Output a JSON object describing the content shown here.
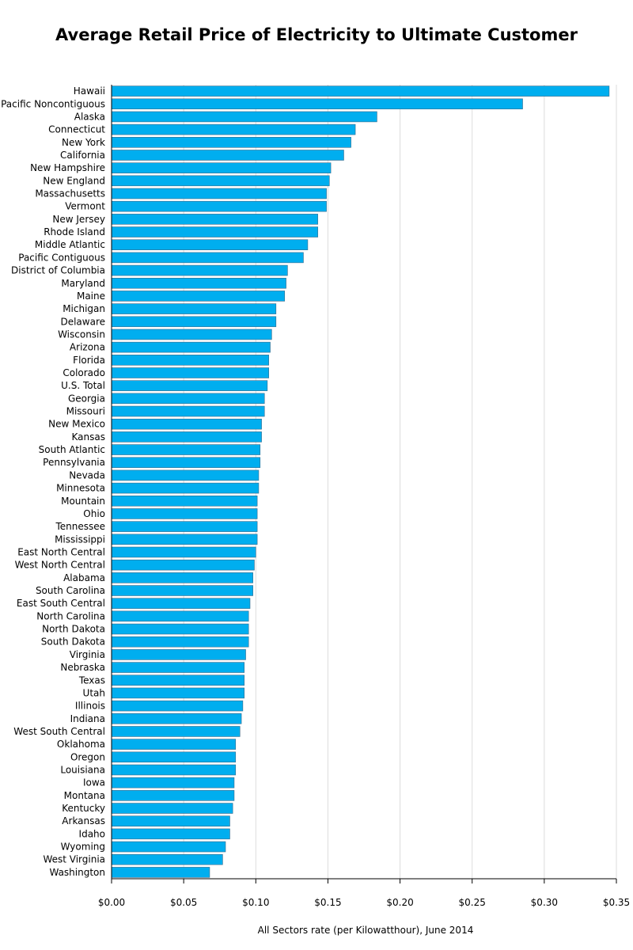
{
  "chart_data": {
    "type": "bar",
    "orientation": "horizontal",
    "title": "Average Retail Price of Electricity to Ultimate Customer",
    "xlabel": "All Sectors rate (per Kilowatthour), June 2014",
    "ylabel": "",
    "xlim": [
      0,
      0.35
    ],
    "xticks": [
      0.0,
      0.05,
      0.1,
      0.15,
      0.2,
      0.25,
      0.3,
      0.35
    ],
    "xtick_labels": [
      "$0.00",
      "$0.05",
      "$0.10",
      "$0.15",
      "$0.20",
      "$0.25",
      "$0.30",
      "$0.35"
    ],
    "grid": "vertical",
    "bar_color": "#00aeef",
    "bar_edge_color": "#3a6a8a",
    "categories": [
      "Hawaii",
      "Pacific Noncontiguous",
      "Alaska",
      "Connecticut",
      "New York",
      "California",
      "New Hampshire",
      "New England",
      "Massachusetts",
      "Vermont",
      "New Jersey",
      "Rhode Island",
      "Middle Atlantic",
      "Pacific Contiguous",
      "District of Columbia",
      "Maryland",
      "Maine",
      "Michigan",
      "Delaware",
      "Wisconsin",
      "Arizona",
      "Florida",
      "Colorado",
      "U.S. Total",
      "Georgia",
      "Missouri",
      "New Mexico",
      "Kansas",
      "South Atlantic",
      "Pennsylvania",
      "Nevada",
      "Minnesota",
      "Mountain",
      "Ohio",
      "Tennessee",
      "Mississippi",
      "East North Central",
      "West North Central",
      "Alabama",
      "South Carolina",
      "East South Central",
      "North Carolina",
      "North Dakota",
      "South Dakota",
      "Virginia",
      "Nebraska",
      "Texas",
      "Utah",
      "Illinois",
      "Indiana",
      "West South Central",
      "Oklahoma",
      "Oregon",
      "Louisiana",
      "Iowa",
      "Montana",
      "Kentucky",
      "Arkansas",
      "Idaho",
      "Wyoming",
      "West Virginia",
      "Washington"
    ],
    "values": [
      0.345,
      0.285,
      0.184,
      0.169,
      0.166,
      0.161,
      0.152,
      0.151,
      0.149,
      0.149,
      0.143,
      0.143,
      0.136,
      0.133,
      0.122,
      0.121,
      0.12,
      0.114,
      0.114,
      0.111,
      0.11,
      0.109,
      0.109,
      0.108,
      0.106,
      0.106,
      0.104,
      0.104,
      0.103,
      0.103,
      0.102,
      0.102,
      0.101,
      0.101,
      0.101,
      0.101,
      0.1,
      0.099,
      0.098,
      0.098,
      0.096,
      0.095,
      0.095,
      0.095,
      0.093,
      0.092,
      0.092,
      0.092,
      0.091,
      0.09,
      0.089,
      0.086,
      0.086,
      0.086,
      0.085,
      0.085,
      0.084,
      0.082,
      0.082,
      0.079,
      0.077,
      0.068
    ]
  }
}
